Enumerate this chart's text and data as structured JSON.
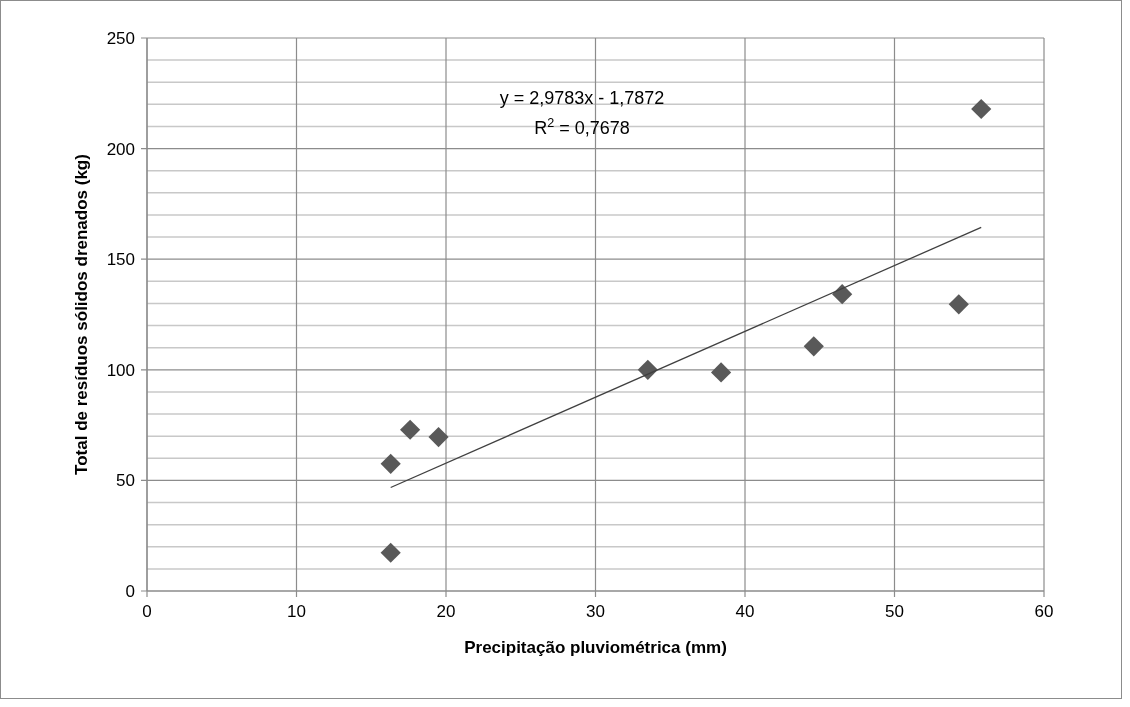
{
  "chart_data": {
    "type": "scatter",
    "xlabel": "Precipitação pluviométrica (mm)",
    "ylabel": "Total de resíduos sólidos drenados (kg)",
    "annotations": [
      "y = 2,9783x - 1,7872",
      "R$^{2}$ = 0,7678"
    ],
    "x": [
      16.3,
      16.3,
      17.6,
      19.5,
      33.5,
      38.4,
      44.6,
      46.5,
      54.3,
      55.8
    ],
    "series": [
      {
        "color": "#595959",
        "marker": "diamond",
        "values": [
          17.3,
          57.5,
          72.9,
          69.6,
          100,
          98.8,
          110.6,
          134.2,
          129.6,
          217.9
        ]
      },
      {
        "type": "line",
        "color": "#404040",
        "marker": "none",
        "x": [
          16.3,
          55.8
        ],
        "values": [
          46.8,
          164.4
        ]
      }
    ],
    "xlim": [
      0,
      60
    ],
    "xticks": [
      0,
      10,
      20,
      30,
      40,
      50,
      60
    ],
    "ylim": [
      0,
      250
    ],
    "yticks": [
      0,
      50,
      100,
      150,
      200,
      250
    ],
    "grid": true
  }
}
